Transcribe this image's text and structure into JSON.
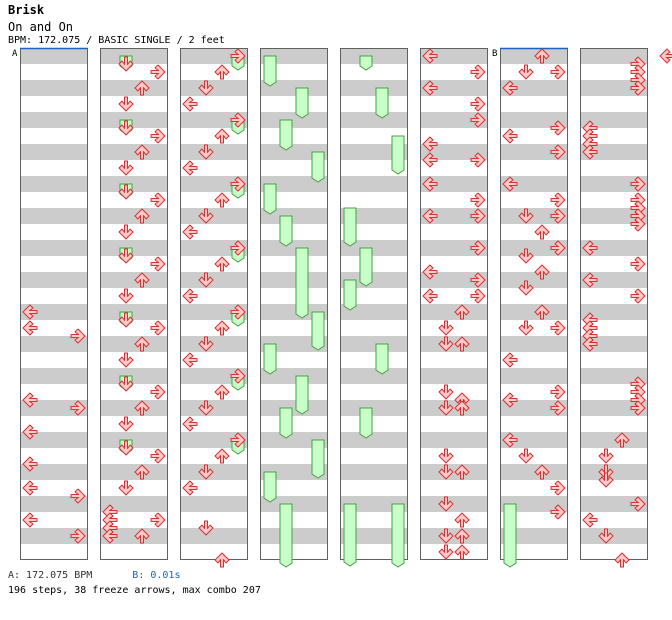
{
  "song": {
    "title": "Brisk",
    "artist": "On and On",
    "meta": "BPM: 172.075 / BASIC SINGLE / 2 feet"
  },
  "footer": {
    "bpm_a": "A: 172.075 BPM",
    "bpm_b": "B: 0.01s",
    "stats": "196 steps, 38 freeze arrows, max combo 207"
  },
  "chart_markers": [
    {
      "label": "A",
      "column": 0,
      "row": 0
    },
    {
      "label": "B",
      "column": 6,
      "row": 0
    }
  ],
  "colors": {
    "arrow_fill": "#ffc8c8",
    "arrow_stroke": "#d23232",
    "freeze_fill": "#c8ffc8",
    "freeze_stroke": "#46a046",
    "stripe": "#cccccc",
    "border": "#606060",
    "marker_line": "#1a62c4"
  },
  "chart_data": {
    "type": "step-chart",
    "lanes": [
      "left",
      "down",
      "up",
      "right"
    ],
    "columns": 8,
    "measures_per_column": 8,
    "notes": [
      {
        "c": 0,
        "m": 4,
        "b": 0,
        "l": 0
      },
      {
        "c": 0,
        "m": 4,
        "b": 1,
        "l": 0
      },
      {
        "c": 0,
        "m": 4,
        "b": 1.5,
        "l": 3
      },
      {
        "c": 0,
        "m": 5,
        "b": 1.5,
        "l": 0
      },
      {
        "c": 0,
        "m": 5,
        "b": 2,
        "l": 3
      },
      {
        "c": 0,
        "m": 5,
        "b": 3.5,
        "l": 0
      },
      {
        "c": 0,
        "m": 6,
        "b": 1.5,
        "l": 0
      },
      {
        "c": 0,
        "m": 6,
        "b": 3,
        "l": 0
      },
      {
        "c": 0,
        "m": 6,
        "b": 3.5,
        "l": 3
      },
      {
        "c": 0,
        "m": 7,
        "b": 1,
        "l": 0
      },
      {
        "c": 0,
        "m": 7,
        "b": 2,
        "l": 3
      },
      {
        "c": 1,
        "m": 0,
        "b": 0.5,
        "l": 1
      },
      {
        "c": 1,
        "m": 0,
        "b": 1,
        "l": 3
      },
      {
        "c": 1,
        "m": 0,
        "b": 2,
        "l": 2
      },
      {
        "c": 1,
        "m": 0,
        "b": 3,
        "l": 1
      },
      {
        "c": 1,
        "m": 1,
        "b": 0.5,
        "l": 1
      },
      {
        "c": 1,
        "m": 1,
        "b": 1,
        "l": 3
      },
      {
        "c": 1,
        "m": 1,
        "b": 2,
        "l": 2
      },
      {
        "c": 1,
        "m": 1,
        "b": 3,
        "l": 1
      },
      {
        "c": 1,
        "m": 2,
        "b": 0.5,
        "l": 1
      },
      {
        "c": 1,
        "m": 2,
        "b": 1,
        "l": 3
      },
      {
        "c": 1,
        "m": 2,
        "b": 2,
        "l": 2
      },
      {
        "c": 1,
        "m": 2,
        "b": 3,
        "l": 1
      },
      {
        "c": 1,
        "m": 3,
        "b": 0.5,
        "l": 1
      },
      {
        "c": 1,
        "m": 3,
        "b": 1,
        "l": 3
      },
      {
        "c": 1,
        "m": 3,
        "b": 2,
        "l": 2
      },
      {
        "c": 1,
        "m": 3,
        "b": 3,
        "l": 1
      },
      {
        "c": 1,
        "m": 4,
        "b": 0.5,
        "l": 1
      },
      {
        "c": 1,
        "m": 4,
        "b": 1,
        "l": 3
      },
      {
        "c": 1,
        "m": 4,
        "b": 2,
        "l": 2
      },
      {
        "c": 1,
        "m": 4,
        "b": 3,
        "l": 1
      },
      {
        "c": 1,
        "m": 5,
        "b": 0.5,
        "l": 1
      },
      {
        "c": 1,
        "m": 5,
        "b": 1,
        "l": 3
      },
      {
        "c": 1,
        "m": 5,
        "b": 2,
        "l": 2
      },
      {
        "c": 1,
        "m": 5,
        "b": 3,
        "l": 1
      },
      {
        "c": 1,
        "m": 6,
        "b": 0.5,
        "l": 1
      },
      {
        "c": 1,
        "m": 6,
        "b": 1,
        "l": 3
      },
      {
        "c": 1,
        "m": 6,
        "b": 2,
        "l": 2
      },
      {
        "c": 1,
        "m": 6,
        "b": 3,
        "l": 1
      },
      {
        "c": 1,
        "m": 7,
        "b": 0.5,
        "l": 0
      },
      {
        "c": 1,
        "m": 7,
        "b": 1,
        "l": 0
      },
      {
        "c": 1,
        "m": 7,
        "b": 1.5,
        "l": 0
      },
      {
        "c": 1,
        "m": 7,
        "b": 2,
        "l": 0
      },
      {
        "c": 1,
        "m": 7,
        "b": 1,
        "l": 3
      },
      {
        "c": 1,
        "m": 7,
        "b": 2,
        "l": 2
      },
      {
        "c": 2,
        "m": 0,
        "b": 0,
        "l": 3
      },
      {
        "c": 2,
        "m": 0,
        "b": 1,
        "l": 2
      },
      {
        "c": 2,
        "m": 0,
        "b": 2,
        "l": 1
      },
      {
        "c": 2,
        "m": 0,
        "b": 3,
        "l": 0
      },
      {
        "c": 2,
        "m": 1,
        "b": 0,
        "l": 3
      },
      {
        "c": 2,
        "m": 1,
        "b": 1,
        "l": 2
      },
      {
        "c": 2,
        "m": 1,
        "b": 2,
        "l": 1
      },
      {
        "c": 2,
        "m": 1,
        "b": 3,
        "l": 0
      },
      {
        "c": 2,
        "m": 2,
        "b": 0,
        "l": 3
      },
      {
        "c": 2,
        "m": 2,
        "b": 1,
        "l": 2
      },
      {
        "c": 2,
        "m": 2,
        "b": 2,
        "l": 1
      },
      {
        "c": 2,
        "m": 2,
        "b": 3,
        "l": 0
      },
      {
        "c": 2,
        "m": 3,
        "b": 0,
        "l": 3
      },
      {
        "c": 2,
        "m": 3,
        "b": 1,
        "l": 2
      },
      {
        "c": 2,
        "m": 3,
        "b": 2,
        "l": 1
      },
      {
        "c": 2,
        "m": 3,
        "b": 3,
        "l": 0
      },
      {
        "c": 2,
        "m": 4,
        "b": 0,
        "l": 3
      },
      {
        "c": 2,
        "m": 4,
        "b": 1,
        "l": 2
      },
      {
        "c": 2,
        "m": 4,
        "b": 2,
        "l": 1
      },
      {
        "c": 2,
        "m": 4,
        "b": 3,
        "l": 0
      },
      {
        "c": 2,
        "m": 5,
        "b": 0,
        "l": 3
      },
      {
        "c": 2,
        "m": 5,
        "b": 1,
        "l": 2
      },
      {
        "c": 2,
        "m": 5,
        "b": 2,
        "l": 1
      },
      {
        "c": 2,
        "m": 5,
        "b": 3,
        "l": 0
      },
      {
        "c": 2,
        "m": 6,
        "b": 0,
        "l": 3
      },
      {
        "c": 2,
        "m": 6,
        "b": 1,
        "l": 2
      },
      {
        "c": 2,
        "m": 6,
        "b": 2,
        "l": 1
      },
      {
        "c": 2,
        "m": 6,
        "b": 3,
        "l": 0
      },
      {
        "c": 2,
        "m": 7,
        "b": 1.5,
        "l": 1
      },
      {
        "c": 2,
        "m": 7,
        "b": 3.5,
        "l": 2
      },
      {
        "c": 5,
        "m": 0,
        "b": 0,
        "l": 0
      },
      {
        "c": 5,
        "m": 0,
        "b": 1,
        "l": 3
      },
      {
        "c": 5,
        "m": 0,
        "b": 2,
        "l": 0
      },
      {
        "c": 5,
        "m": 0,
        "b": 3,
        "l": 3
      },
      {
        "c": 5,
        "m": 1,
        "b": 0,
        "l": 3
      },
      {
        "c": 5,
        "m": 1,
        "b": 1.5,
        "l": 0
      },
      {
        "c": 5,
        "m": 1,
        "b": 2.5,
        "l": 0
      },
      {
        "c": 5,
        "m": 1,
        "b": 2.5,
        "l": 3
      },
      {
        "c": 5,
        "m": 2,
        "b": 0,
        "l": 0
      },
      {
        "c": 5,
        "m": 2,
        "b": 1,
        "l": 3
      },
      {
        "c": 5,
        "m": 2,
        "b": 2,
        "l": 0
      },
      {
        "c": 5,
        "m": 2,
        "b": 2,
        "l": 3
      },
      {
        "c": 5,
        "m": 3,
        "b": 0,
        "l": 3
      },
      {
        "c": 5,
        "m": 3,
        "b": 1.5,
        "l": 0
      },
      {
        "c": 5,
        "m": 3,
        "b": 2,
        "l": 3
      },
      {
        "c": 5,
        "m": 3,
        "b": 3,
        "l": 0
      },
      {
        "c": 5,
        "m": 3,
        "b": 3,
        "l": 3
      },
      {
        "c": 5,
        "m": 4,
        "b": 0,
        "l": 2
      },
      {
        "c": 5,
        "m": 4,
        "b": 1,
        "l": 1
      },
      {
        "c": 5,
        "m": 4,
        "b": 2,
        "l": 1
      },
      {
        "c": 5,
        "m": 4,
        "b": 2,
        "l": 2
      },
      {
        "c": 5,
        "m": 5,
        "b": 1,
        "l": 1
      },
      {
        "c": 5,
        "m": 5,
        "b": 1.5,
        "l": 2
      },
      {
        "c": 5,
        "m": 5,
        "b": 2,
        "l": 1
      },
      {
        "c": 5,
        "m": 5,
        "b": 2,
        "l": 2
      },
      {
        "c": 5,
        "m": 6,
        "b": 1,
        "l": 1
      },
      {
        "c": 5,
        "m": 6,
        "b": 2,
        "l": 1
      },
      {
        "c": 5,
        "m": 6,
        "b": 2,
        "l": 2
      },
      {
        "c": 5,
        "m": 7,
        "b": 0,
        "l": 1
      },
      {
        "c": 5,
        "m": 7,
        "b": 1,
        "l": 2
      },
      {
        "c": 5,
        "m": 7,
        "b": 2,
        "l": 1
      },
      {
        "c": 5,
        "m": 7,
        "b": 2,
        "l": 2
      },
      {
        "c": 5,
        "m": 7,
        "b": 3,
        "l": 1
      },
      {
        "c": 5,
        "m": 7,
        "b": 3,
        "l": 2
      },
      {
        "c": 6,
        "m": 0,
        "b": 0,
        "l": 2
      },
      {
        "c": 6,
        "m": 0,
        "b": 1,
        "l": 1
      },
      {
        "c": 6,
        "m": 0,
        "b": 1,
        "l": 3
      },
      {
        "c": 6,
        "m": 0,
        "b": 2,
        "l": 0
      },
      {
        "c": 6,
        "m": 1,
        "b": 0.5,
        "l": 3
      },
      {
        "c": 6,
        "m": 1,
        "b": 1,
        "l": 0
      },
      {
        "c": 6,
        "m": 1,
        "b": 2,
        "l": 3
      },
      {
        "c": 6,
        "m": 2,
        "b": 0,
        "l": 0
      },
      {
        "c": 6,
        "m": 2,
        "b": 1,
        "l": 3
      },
      {
        "c": 6,
        "m": 2,
        "b": 2,
        "l": 1
      },
      {
        "c": 6,
        "m": 2,
        "b": 2,
        "l": 3
      },
      {
        "c": 6,
        "m": 2,
        "b": 3,
        "l": 2
      },
      {
        "c": 6,
        "m": 3,
        "b": 0,
        "l": 3
      },
      {
        "c": 6,
        "m": 3,
        "b": 0.5,
        "l": 1
      },
      {
        "c": 6,
        "m": 3,
        "b": 1.5,
        "l": 2
      },
      {
        "c": 6,
        "m": 3,
        "b": 2.5,
        "l": 1
      },
      {
        "c": 6,
        "m": 4,
        "b": 0,
        "l": 2
      },
      {
        "c": 6,
        "m": 4,
        "b": 1,
        "l": 1
      },
      {
        "c": 6,
        "m": 4,
        "b": 1,
        "l": 3
      },
      {
        "c": 6,
        "m": 4,
        "b": 3,
        "l": 0
      },
      {
        "c": 6,
        "m": 5,
        "b": 1,
        "l": 3
      },
      {
        "c": 6,
        "m": 5,
        "b": 1.5,
        "l": 0
      },
      {
        "c": 6,
        "m": 5,
        "b": 2,
        "l": 3
      },
      {
        "c": 6,
        "m": 6,
        "b": 0,
        "l": 0
      },
      {
        "c": 6,
        "m": 6,
        "b": 1,
        "l": 1
      },
      {
        "c": 6,
        "m": 6,
        "b": 2,
        "l": 2
      },
      {
        "c": 6,
        "m": 6,
        "b": 3,
        "l": 3
      },
      {
        "c": 6,
        "m": 7,
        "b": 0.5,
        "l": 3
      },
      {
        "c": 7,
        "m": 0,
        "b": 0.5,
        "l": 3
      },
      {
        "c": 7,
        "m": 0,
        "b": 1,
        "l": 3
      },
      {
        "c": 7,
        "m": 0,
        "b": 1.5,
        "l": 3
      },
      {
        "c": 7,
        "m": 0,
        "b": 2,
        "l": 3
      },
      {
        "c": 7,
        "m": 1,
        "b": 0.5,
        "l": 0
      },
      {
        "c": 7,
        "m": 1,
        "b": 1,
        "l": 0
      },
      {
        "c": 7,
        "m": 1,
        "b": 1.5,
        "l": 0
      },
      {
        "c": 7,
        "m": 1,
        "b": 2,
        "l": 0
      },
      {
        "c": 7,
        "m": 2,
        "b": 0,
        "l": 3
      },
      {
        "c": 7,
        "m": 2,
        "b": 1,
        "l": 3
      },
      {
        "c": 7,
        "m": 2,
        "b": 1.5,
        "l": 3
      },
      {
        "c": 7,
        "m": 2,
        "b": 2,
        "l": 3
      },
      {
        "c": 7,
        "m": 2,
        "b": 2.5,
        "l": 3
      },
      {
        "c": 7,
        "m": 3,
        "b": 0,
        "l": 0
      },
      {
        "c": 7,
        "m": 3,
        "b": 1,
        "l": 3
      },
      {
        "c": 7,
        "m": 3,
        "b": 2,
        "l": 0
      },
      {
        "c": 7,
        "m": 3,
        "b": 3,
        "l": 3
      },
      {
        "c": 7,
        "m": 4,
        "b": 0.5,
        "l": 0
      },
      {
        "c": 7,
        "m": 4,
        "b": 1,
        "l": 0
      },
      {
        "c": 7,
        "m": 4,
        "b": 1.5,
        "l": 0
      },
      {
        "c": 7,
        "m": 4,
        "b": 2,
        "l": 0
      },
      {
        "c": 7,
        "m": 5,
        "b": 0.5,
        "l": 3
      },
      {
        "c": 7,
        "m": 5,
        "b": 1,
        "l": 3
      },
      {
        "c": 7,
        "m": 5,
        "b": 1.5,
        "l": 3
      },
      {
        "c": 7,
        "m": 5,
        "b": 2,
        "l": 3
      },
      {
        "c": 7,
        "m": 6,
        "b": 0,
        "l": 2
      },
      {
        "c": 7,
        "m": 6,
        "b": 1,
        "l": 1
      },
      {
        "c": 7,
        "m": 6,
        "b": 2,
        "l": 1
      },
      {
        "c": 7,
        "m": 6,
        "b": 2.5,
        "l": 1
      },
      {
        "c": 7,
        "m": 7,
        "b": 0,
        "l": 3
      },
      {
        "c": 7,
        "m": 7,
        "b": 1,
        "l": 0
      },
      {
        "c": 7,
        "m": 7,
        "b": 2,
        "l": 1
      },
      {
        "c": 7,
        "m": 7,
        "b": 3.5,
        "l": 2
      }
    ],
    "freezes": [
      {
        "c": 1,
        "m": 0,
        "b0": 0,
        "b1": 0.5,
        "l": 1
      },
      {
        "c": 1,
        "m": 1,
        "b0": 0,
        "b1": 0.5,
        "l": 1
      },
      {
        "c": 1,
        "m": 2,
        "b0": 0,
        "b1": 0.5,
        "l": 1
      },
      {
        "c": 1,
        "m": 3,
        "b0": 0,
        "b1": 0.5,
        "l": 1
      },
      {
        "c": 1,
        "m": 4,
        "b0": 0,
        "b1": 0.5,
        "l": 1
      },
      {
        "c": 1,
        "m": 5,
        "b0": 0,
        "b1": 0.5,
        "l": 1
      },
      {
        "c": 1,
        "m": 6,
        "b0": 0,
        "b1": 0.5,
        "l": 1
      },
      {
        "c": 2,
        "m": 0,
        "b0": 0,
        "b1": 0.5,
        "l": 3
      },
      {
        "c": 2,
        "m": 1,
        "b0": 0,
        "b1": 0.5,
        "l": 3
      },
      {
        "c": 2,
        "m": 2,
        "b0": 0,
        "b1": 0.5,
        "l": 3
      },
      {
        "c": 2,
        "m": 3,
        "b0": 0,
        "b1": 0.5,
        "l": 3
      },
      {
        "c": 2,
        "m": 4,
        "b0": 0,
        "b1": 0.5,
        "l": 3
      },
      {
        "c": 2,
        "m": 5,
        "b0": 0,
        "b1": 0.5,
        "l": 3
      },
      {
        "c": 2,
        "m": 6,
        "b0": 0,
        "b1": 0.5,
        "l": 3
      },
      {
        "c": 3,
        "m": 0,
        "b0": 0,
        "b1": 1.5,
        "l": 0
      },
      {
        "c": 3,
        "m": 0,
        "b0": 2,
        "b1": 3.5,
        "l": 2
      },
      {
        "c": 3,
        "m": 1,
        "b0": 0,
        "b1": 1.5,
        "l": 1
      },
      {
        "c": 3,
        "m": 1,
        "b0": 2,
        "b1": 3.5,
        "l": 3
      },
      {
        "c": 3,
        "m": 2,
        "b0": 0,
        "b1": 1.5,
        "l": 0
      },
      {
        "c": 3,
        "m": 2,
        "b0": 2,
        "b1": 3.5,
        "l": 1
      },
      {
        "c": 3,
        "m": 3,
        "b0": 0,
        "b1": 4,
        "l": 2
      },
      {
        "c": 3,
        "m": 4,
        "b0": 0,
        "b1": 2,
        "l": 3
      },
      {
        "c": 3,
        "m": 4,
        "b0": 2,
        "b1": 3.5,
        "l": 0
      },
      {
        "c": 3,
        "m": 5,
        "b0": 0,
        "b1": 2,
        "l": 2
      },
      {
        "c": 3,
        "m": 5,
        "b0": 2,
        "b1": 3.5,
        "l": 1
      },
      {
        "c": 3,
        "m": 6,
        "b0": 0,
        "b1": 2,
        "l": 3
      },
      {
        "c": 3,
        "m": 6,
        "b0": 2,
        "b1": 3.5,
        "l": 0
      },
      {
        "c": 3,
        "m": 7,
        "b0": 0,
        "b1": 4.5,
        "l": 1
      },
      {
        "c": 4,
        "m": 0,
        "b0": 0,
        "b1": 0.5,
        "l": 1
      },
      {
        "c": 4,
        "m": 0,
        "b0": 2,
        "b1": 3.5,
        "l": 2
      },
      {
        "c": 4,
        "m": 1,
        "b0": 1,
        "b1": 3,
        "l": 3
      },
      {
        "c": 4,
        "m": 2,
        "b0": 1.5,
        "b1": 3.5,
        "l": 0
      },
      {
        "c": 4,
        "m": 3,
        "b0": 0,
        "b1": 2,
        "l": 1
      },
      {
        "c": 4,
        "m": 3,
        "b0": 2,
        "b1": 3.5,
        "l": 0
      },
      {
        "c": 4,
        "m": 4,
        "b0": 2,
        "b1": 3.5,
        "l": 2
      },
      {
        "c": 4,
        "m": 5,
        "b0": 2,
        "b1": 3.5,
        "l": 1
      },
      {
        "c": 4,
        "m": 7,
        "b0": 0,
        "b1": 3.5,
        "l": 0
      },
      {
        "c": 4,
        "m": 7,
        "b0": 0,
        "b1": 4,
        "l": 3
      },
      {
        "c": 6,
        "m": 7,
        "b0": 0,
        "b1": 4.5,
        "l": 0
      }
    ]
  }
}
